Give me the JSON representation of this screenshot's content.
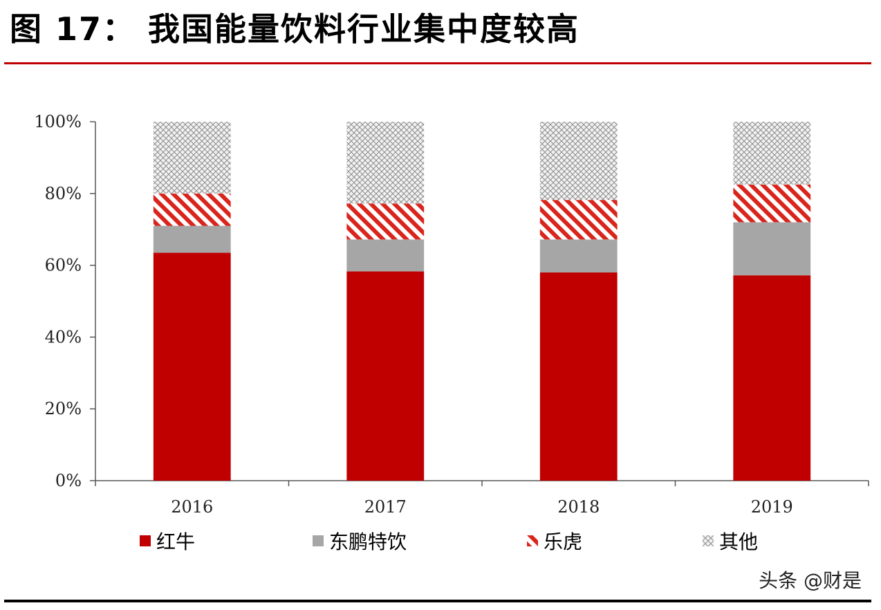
{
  "title": "图 17： 我国能量饮料行业集中度较高",
  "watermark": "头条 @财是",
  "chart_data": {
    "type": "bar",
    "stacked": true,
    "categories": [
      "2016",
      "2017",
      "2018",
      "2019"
    ],
    "series": [
      {
        "name": "红牛",
        "values": [
          63.5,
          58.3,
          58.0,
          57.2
        ],
        "color": "#c00000",
        "pattern": "solid"
      },
      {
        "name": "东鹏特饮",
        "values": [
          7.5,
          8.9,
          9.2,
          14.8
        ],
        "color": "#a6a6a6",
        "pattern": "solid"
      },
      {
        "name": "乐虎",
        "values": [
          9.0,
          10.0,
          11.0,
          10.5
        ],
        "color": "#d9251c",
        "pattern": "diagonal-stripes"
      },
      {
        "name": "其他",
        "values": [
          20.0,
          22.8,
          21.8,
          17.5
        ],
        "color": "#9a9a9a",
        "pattern": "crosshatch"
      }
    ],
    "yticks": [
      "0%",
      "20%",
      "40%",
      "60%",
      "80%",
      "100%"
    ],
    "ylim": [
      0,
      100
    ],
    "legend_position": "bottom",
    "grid": false
  }
}
